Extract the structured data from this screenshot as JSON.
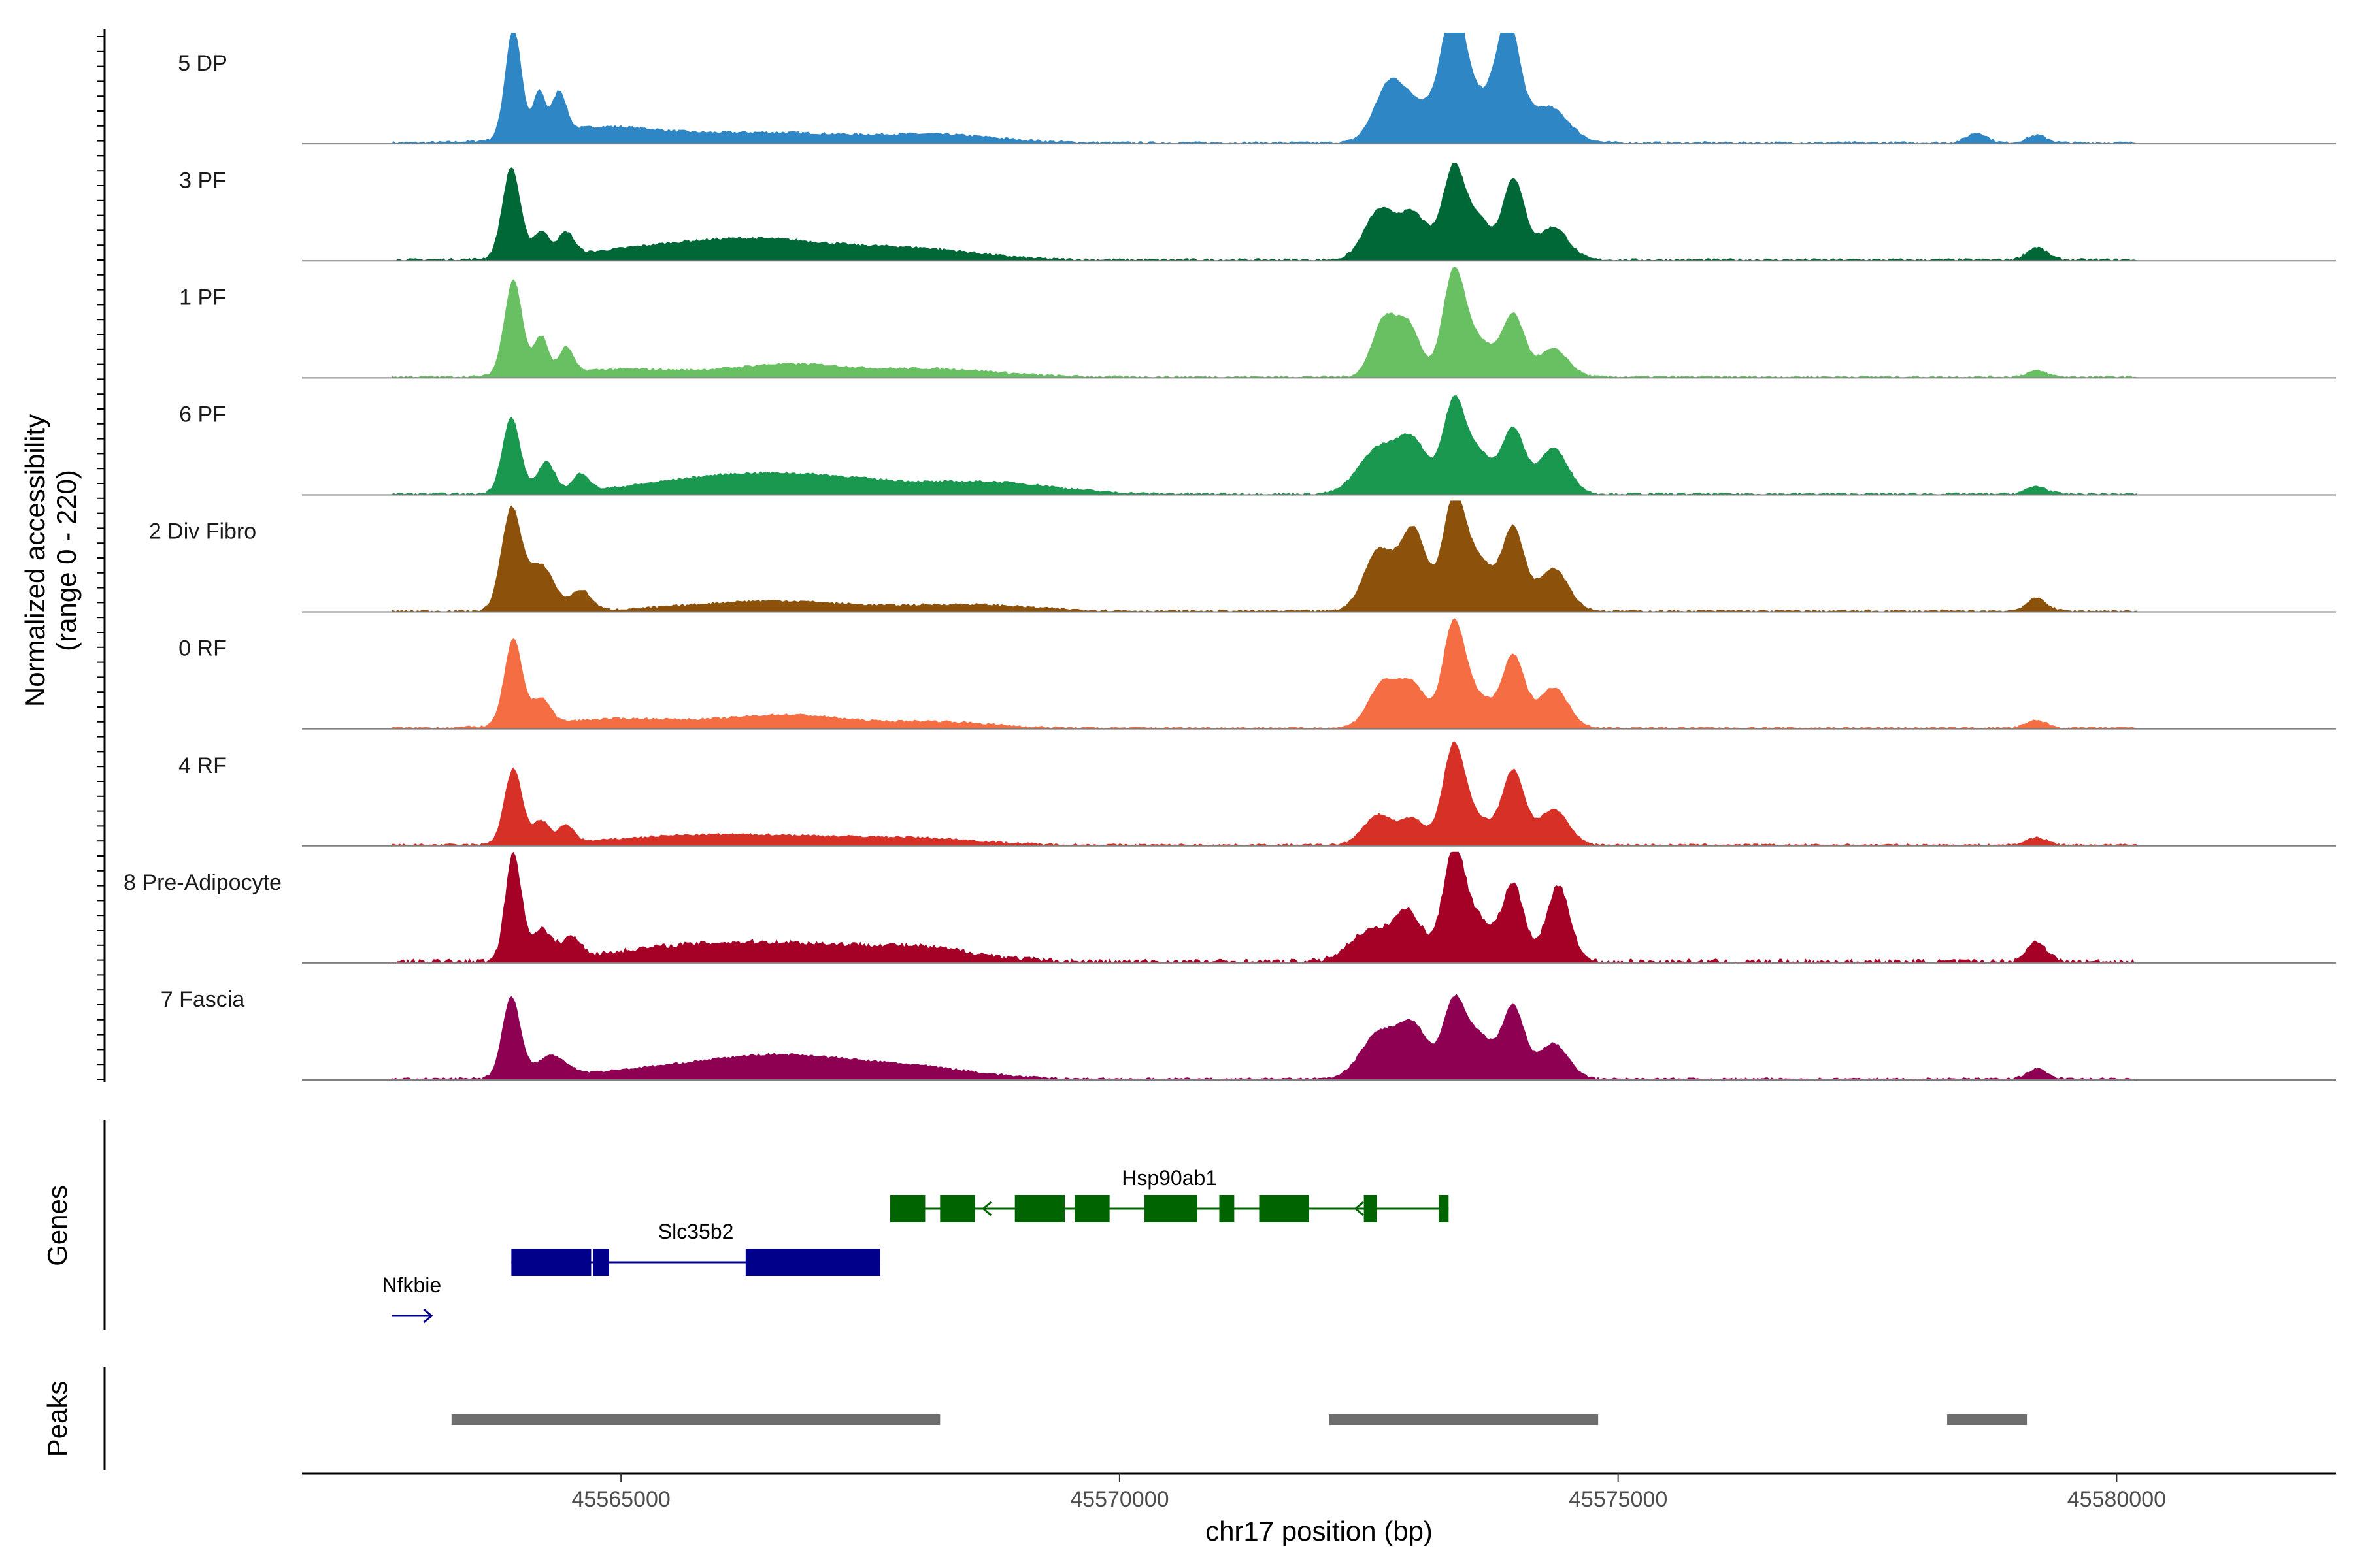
{
  "chart_data": {
    "type": "area",
    "subtype": "genome-coverage-tracks",
    "y_axis_title_line1": "Normalized accessibility",
    "y_axis_title_line2": "(range 0 - 220)",
    "y_range": [
      0,
      220
    ],
    "x_axis_title": "chr17 position (bp)",
    "x_range": [
      45561800,
      45582200
    ],
    "x_ticks": [
      {
        "value": 45565000,
        "label": "45565000"
      },
      {
        "value": 45570000,
        "label": "45570000"
      },
      {
        "value": 45575000,
        "label": "45575000"
      },
      {
        "value": 45580000,
        "label": "45580000"
      }
    ],
    "coverage_range_bp": [
      45562700,
      45580200
    ],
    "tracks": [
      {
        "name": "5 DP",
        "color": "#2f86c5",
        "scale": 0.95,
        "noise": 0.5,
        "peaks": [
          [
            45563920,
            80,
            220
          ],
          [
            45564180,
            60,
            85
          ],
          [
            45564380,
            70,
            80
          ],
          [
            45564800,
            600,
            30
          ],
          [
            45566500,
            800,
            20
          ],
          [
            45568200,
            600,
            15
          ],
          [
            45572700,
            150,
            90
          ],
          [
            45573000,
            250,
            70
          ],
          [
            45573350,
            110,
            210
          ],
          [
            45573600,
            250,
            90
          ],
          [
            45573900,
            110,
            200
          ],
          [
            45574300,
            200,
            70
          ],
          [
            45578600,
            100,
            20
          ],
          [
            45579200,
            100,
            15
          ]
        ]
      },
      {
        "name": "3 PF",
        "color": "#006837",
        "scale": 0.95,
        "noise": 0.5,
        "peaks": [
          [
            45563900,
            90,
            180
          ],
          [
            45564200,
            80,
            50
          ],
          [
            45564450,
            80,
            45
          ],
          [
            45565500,
            800,
            25
          ],
          [
            45566600,
            700,
            30
          ],
          [
            45568000,
            600,
            20
          ],
          [
            45572600,
            150,
            95
          ],
          [
            45572950,
            150,
            90
          ],
          [
            45573350,
            110,
            180
          ],
          [
            45573600,
            120,
            80
          ],
          [
            45573950,
            110,
            160
          ],
          [
            45574350,
            150,
            65
          ],
          [
            45579200,
            100,
            25
          ]
        ]
      },
      {
        "name": "1 PF",
        "color": "#69c063",
        "scale": 0.95,
        "noise": 0.45,
        "peaks": [
          [
            45563920,
            90,
            190
          ],
          [
            45564200,
            70,
            75
          ],
          [
            45564450,
            70,
            50
          ],
          [
            45565000,
            600,
            15
          ],
          [
            45566700,
            600,
            25
          ],
          [
            45568200,
            600,
            15
          ],
          [
            45572650,
            120,
            110
          ],
          [
            45572900,
            120,
            100
          ],
          [
            45573350,
            110,
            200
          ],
          [
            45573600,
            150,
            70
          ],
          [
            45573950,
            110,
            120
          ],
          [
            45574350,
            150,
            55
          ],
          [
            45579200,
            100,
            12
          ]
        ]
      },
      {
        "name": "6 PF",
        "color": "#1a9850",
        "scale": 0.95,
        "noise": 0.45,
        "peaks": [
          [
            45563900,
            90,
            150
          ],
          [
            45564250,
            90,
            60
          ],
          [
            45564600,
            80,
            35
          ],
          [
            45566000,
            800,
            30
          ],
          [
            45567200,
            800,
            25
          ],
          [
            45568800,
            600,
            20
          ],
          [
            45572600,
            200,
            90
          ],
          [
            45572950,
            150,
            95
          ],
          [
            45573350,
            110,
            170
          ],
          [
            45573600,
            150,
            80
          ],
          [
            45573950,
            110,
            125
          ],
          [
            45574350,
            150,
            90
          ],
          [
            45579200,
            100,
            15
          ]
        ]
      },
      {
        "name": "2 Div Fibro",
        "color": "#8c510a",
        "scale": 0.95,
        "noise": 0.45,
        "peaks": [
          [
            45563900,
            100,
            200
          ],
          [
            45564200,
            130,
            90
          ],
          [
            45564600,
            100,
            40
          ],
          [
            45566500,
            800,
            20
          ],
          [
            45568500,
            600,
            12
          ],
          [
            45572600,
            150,
            120
          ],
          [
            45572950,
            130,
            160
          ],
          [
            45573350,
            110,
            210
          ],
          [
            45573600,
            150,
            100
          ],
          [
            45573950,
            110,
            160
          ],
          [
            45574350,
            150,
            85
          ],
          [
            45579200,
            100,
            25
          ]
        ]
      },
      {
        "name": "0 RF",
        "color": "#f46d43",
        "scale": 0.95,
        "noise": 0.45,
        "peaks": [
          [
            45563920,
            90,
            170
          ],
          [
            45564200,
            90,
            50
          ],
          [
            45565000,
            700,
            18
          ],
          [
            45566700,
            600,
            25
          ],
          [
            45568200,
            500,
            12
          ],
          [
            45572650,
            150,
            90
          ],
          [
            45572950,
            130,
            80
          ],
          [
            45573350,
            110,
            200
          ],
          [
            45573600,
            150,
            60
          ],
          [
            45573950,
            110,
            140
          ],
          [
            45574350,
            150,
            80
          ],
          [
            45579200,
            100,
            15
          ]
        ]
      },
      {
        "name": "4 RF",
        "color": "#d73027",
        "scale": 0.95,
        "noise": 0.45,
        "peaks": [
          [
            45563920,
            90,
            150
          ],
          [
            45564200,
            80,
            45
          ],
          [
            45564450,
            80,
            35
          ],
          [
            45565500,
            700,
            15
          ],
          [
            45566700,
            700,
            15
          ],
          [
            45568000,
            600,
            12
          ],
          [
            45572600,
            150,
            60
          ],
          [
            45572950,
            120,
            50
          ],
          [
            45573350,
            110,
            190
          ],
          [
            45573600,
            150,
            50
          ],
          [
            45573950,
            110,
            145
          ],
          [
            45574350,
            150,
            70
          ],
          [
            45579200,
            100,
            15
          ]
        ]
      },
      {
        "name": "8 Pre-Adipocyte",
        "color": "#a50026",
        "scale": 0.95,
        "noise": 1.0,
        "peaks": [
          [
            45563920,
            80,
            215
          ],
          [
            45564200,
            100,
            60
          ],
          [
            45564500,
            100,
            40
          ],
          [
            45565500,
            700,
            25
          ],
          [
            45566700,
            700,
            30
          ],
          [
            45568000,
            600,
            25
          ],
          [
            45572500,
            200,
            60
          ],
          [
            45572900,
            150,
            95
          ],
          [
            45573350,
            110,
            210
          ],
          [
            45573600,
            150,
            80
          ],
          [
            45573950,
            110,
            150
          ],
          [
            45574400,
            120,
            150
          ],
          [
            45579200,
            100,
            40
          ]
        ]
      },
      {
        "name": "7 Fascia",
        "color": "#8e0152",
        "scale": 0.95,
        "noise": 0.45,
        "peaks": [
          [
            45563900,
            90,
            160
          ],
          [
            45564300,
            150,
            40
          ],
          [
            45565500,
            800,
            20
          ],
          [
            45566700,
            700,
            40
          ],
          [
            45568000,
            600,
            20
          ],
          [
            45572600,
            180,
            90
          ],
          [
            45572950,
            150,
            100
          ],
          [
            45573350,
            110,
            140
          ],
          [
            45573600,
            150,
            85
          ],
          [
            45573950,
            110,
            140
          ],
          [
            45574350,
            150,
            70
          ],
          [
            45579200,
            100,
            20
          ]
        ]
      }
    ],
    "genes_panel_label": "Genes",
    "genes": [
      {
        "name": "Nfkbie",
        "strand": "+",
        "color": "#00008b",
        "start": 45562700,
        "end": 45563100,
        "exons": [],
        "row": 3
      },
      {
        "name": "Slc35b2",
        "strand": "+",
        "color": "#00008b",
        "start": 45563900,
        "end": 45567600,
        "exons": [
          [
            45563900,
            45564700
          ],
          [
            45564720,
            45564880
          ],
          [
            45566250,
            45567600
          ]
        ],
        "row": 2
      },
      {
        "name": "Hsp90ab1",
        "strand": "-",
        "color": "#006400",
        "start": 45567700,
        "end": 45573300,
        "exons": [
          [
            45567700,
            45568050
          ],
          [
            45568200,
            45568550
          ],
          [
            45568950,
            45569450
          ],
          [
            45569550,
            45569900
          ],
          [
            45570250,
            45570780
          ],
          [
            45571000,
            45571150
          ],
          [
            45571400,
            45571900
          ],
          [
            45572450,
            45572580
          ],
          [
            45573200,
            45573300
          ]
        ],
        "row": 1
      }
    ],
    "peaks_panel_label": "Peaks",
    "peak_regions": [
      [
        45563300,
        45568200
      ],
      [
        45572100,
        45574800
      ],
      [
        45578300,
        45579100
      ]
    ]
  }
}
